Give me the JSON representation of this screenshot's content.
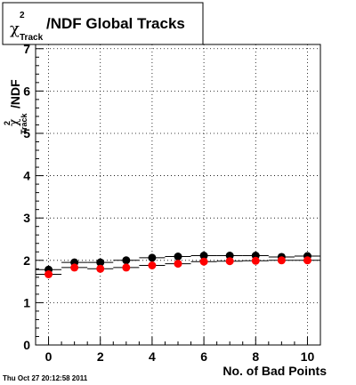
{
  "chart_data": {
    "type": "scatter",
    "title": {
      "symbol": "χ",
      "superscript": "2",
      "subscript": "Track",
      "suffix": "/NDF  Global Tracks"
    },
    "xlabel": "No. of Bad Points",
    "ylabel": {
      "symbol": "χ",
      "superscript": "2",
      "subscript": "Track",
      "suffix": "/NDF"
    },
    "xlim": [
      -0.5,
      10.5
    ],
    "ylim": [
      0,
      7.1
    ],
    "xticks": [
      0,
      2,
      4,
      6,
      8,
      10
    ],
    "yticks": [
      0,
      1,
      2,
      3,
      4,
      5,
      6,
      7
    ],
    "grid": true,
    "series": [
      {
        "color": "#000000",
        "x": [
          0,
          1,
          2,
          3,
          4,
          5,
          6,
          7,
          8,
          9,
          10
        ],
        "y": [
          1.78,
          1.95,
          1.95,
          2.0,
          2.06,
          2.09,
          2.11,
          2.11,
          2.11,
          2.08,
          2.1
        ]
      },
      {
        "color": "#ff0000",
        "x": [
          0,
          1,
          2,
          3,
          4,
          5,
          6,
          7,
          8,
          9,
          10
        ],
        "y": [
          1.67,
          1.83,
          1.8,
          1.83,
          1.88,
          1.92,
          1.97,
          1.98,
          1.99,
          2.0,
          2.0
        ]
      }
    ]
  },
  "timestamp": "Thu Oct 27 20:12:58 2011"
}
